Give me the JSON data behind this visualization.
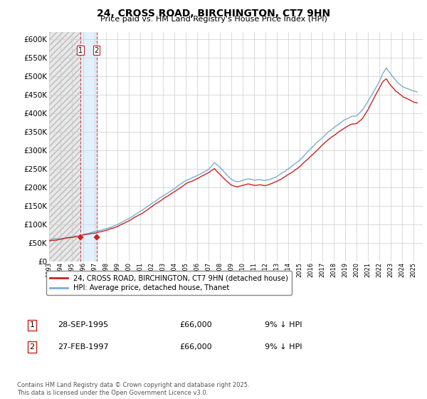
{
  "title": "24, CROSS ROAD, BIRCHINGTON, CT7 9HN",
  "subtitle": "Price paid vs. HM Land Registry's House Price Index (HPI)",
  "legend_label_red": "24, CROSS ROAD, BIRCHINGTON, CT7 9HN (detached house)",
  "legend_label_blue": "HPI: Average price, detached house, Thanet",
  "footer": "Contains HM Land Registry data © Crown copyright and database right 2025.\nThis data is licensed under the Open Government Licence v3.0.",
  "transactions": [
    {
      "num": 1,
      "date": "28-SEP-1995",
      "price": "£66,000",
      "hpi": "9% ↓ HPI"
    },
    {
      "num": 2,
      "date": "27-FEB-1997",
      "price": "£66,000",
      "hpi": "9% ↓ HPI"
    }
  ],
  "sale_dates": [
    1995.75,
    1997.17
  ],
  "sale_prices": [
    66000,
    66000
  ],
  "ylim": [
    0,
    620000
  ],
  "yticks": [
    0,
    50000,
    100000,
    150000,
    200000,
    250000,
    300000,
    350000,
    400000,
    450000,
    500000,
    550000,
    600000
  ],
  "ytick_labels": [
    "£0",
    "£50K",
    "£100K",
    "£150K",
    "£200K",
    "£250K",
    "£300K",
    "£350K",
    "£400K",
    "£450K",
    "£500K",
    "£550K",
    "£600K"
  ],
  "xlim_start": 1993.0,
  "xlim_end": 2025.8,
  "hpi_color": "#7aadd4",
  "sale_color": "#cc2222",
  "marker_color_sale": "#cc2222",
  "grid_color": "#cccccc",
  "transaction_box_color": "#cc2222",
  "hpi_key_x": [
    1993.0,
    1994.0,
    1995.0,
    1996.0,
    1997.0,
    1998.0,
    1999.0,
    2000.0,
    2001.0,
    2002.0,
    2003.0,
    2004.0,
    2005.0,
    2006.0,
    2007.0,
    2007.5,
    2008.0,
    2008.5,
    2009.0,
    2009.5,
    2010.0,
    2010.5,
    2011.0,
    2011.5,
    2012.0,
    2012.5,
    2013.0,
    2013.5,
    2014.0,
    2014.5,
    2015.0,
    2015.5,
    2016.0,
    2016.5,
    2017.0,
    2017.5,
    2018.0,
    2018.5,
    2019.0,
    2019.5,
    2020.0,
    2020.5,
    2021.0,
    2021.5,
    2022.0,
    2022.3,
    2022.6,
    2023.0,
    2023.5,
    2024.0,
    2024.5,
    2025.0,
    2025.3
  ],
  "hpi_key_y": [
    58000,
    62000,
    68000,
    75000,
    82000,
    90000,
    102000,
    118000,
    138000,
    158000,
    178000,
    198000,
    218000,
    232000,
    248000,
    268000,
    255000,
    238000,
    222000,
    215000,
    218000,
    222000,
    218000,
    220000,
    218000,
    222000,
    228000,
    238000,
    248000,
    260000,
    272000,
    288000,
    302000,
    318000,
    332000,
    348000,
    360000,
    372000,
    382000,
    390000,
    392000,
    408000,
    432000,
    460000,
    488000,
    510000,
    525000,
    508000,
    488000,
    475000,
    468000,
    462000,
    460000
  ],
  "red_key_x": [
    1993.0,
    1994.0,
    1995.0,
    1996.0,
    1997.0,
    1998.0,
    1999.0,
    2000.0,
    2001.0,
    2002.0,
    2003.0,
    2004.0,
    2005.0,
    2006.0,
    2007.0,
    2007.5,
    2008.0,
    2008.5,
    2009.0,
    2009.5,
    2010.0,
    2010.5,
    2011.0,
    2011.5,
    2012.0,
    2012.5,
    2013.0,
    2013.5,
    2014.0,
    2014.5,
    2015.0,
    2015.5,
    2016.0,
    2016.5,
    2017.0,
    2017.5,
    2018.0,
    2018.5,
    2019.0,
    2019.5,
    2020.0,
    2020.5,
    2021.0,
    2021.5,
    2022.0,
    2022.3,
    2022.6,
    2023.0,
    2023.5,
    2024.0,
    2024.5,
    2025.0,
    2025.3
  ],
  "red_key_y": [
    55000,
    58000,
    63000,
    70000,
    76000,
    83000,
    94000,
    110000,
    128000,
    148000,
    168000,
    188000,
    208000,
    222000,
    238000,
    248000,
    232000,
    215000,
    200000,
    195000,
    198000,
    202000,
    198000,
    200000,
    198000,
    202000,
    208000,
    218000,
    228000,
    238000,
    248000,
    262000,
    275000,
    290000,
    305000,
    318000,
    330000,
    342000,
    352000,
    360000,
    362000,
    375000,
    398000,
    428000,
    455000,
    472000,
    480000,
    462000,
    445000,
    432000,
    425000,
    418000,
    415000
  ]
}
